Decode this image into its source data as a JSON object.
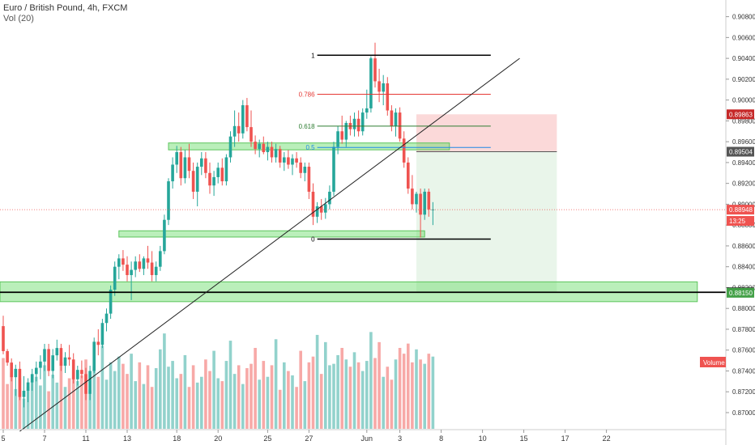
{
  "header": {
    "title": "Euro / British Pound, 4h, FXCM",
    "volume_label": "Vol (20)"
  },
  "chart_data": {
    "type": "candlestick",
    "price_axis": {
      "ylim": [
        0.8686,
        0.9096
      ],
      "ticks": [
        "0.90800",
        "0.90600",
        "0.90400",
        "0.90200",
        "0.90000",
        "0.89800",
        "0.89600",
        "0.89400",
        "0.89200",
        "0.89000",
        "0.88800",
        "0.88600",
        "0.88400",
        "0.88200",
        "0.88000",
        "0.87800",
        "0.87600",
        "0.87400",
        "0.87200",
        "0.87000"
      ],
      "tick_values": [
        0.908,
        0.906,
        0.904,
        0.902,
        0.9,
        0.898,
        0.896,
        0.894,
        0.892,
        0.89,
        0.888,
        0.886,
        0.884,
        0.882,
        0.88,
        0.878,
        0.876,
        0.874,
        0.872,
        0.87
      ]
    },
    "time_axis": {
      "labels": [
        "5",
        "7",
        "11",
        "13",
        "18",
        "20",
        "25",
        "27",
        "Jun",
        "3",
        "8",
        "10",
        "15",
        "17",
        "22"
      ],
      "bar_index": [
        0,
        10,
        20,
        30,
        42,
        52,
        64,
        74,
        88,
        96,
        106,
        116,
        126,
        136,
        146
      ]
    },
    "price_labels": [
      {
        "text": "0.89863",
        "value": 0.89863,
        "color": "#c62828"
      },
      {
        "text": "0.89504",
        "value": 0.89504,
        "color": "#555555"
      },
      {
        "text": "0.88948",
        "value": 0.88948,
        "color": "#ef5350"
      },
      {
        "text": "13:25",
        "value": 0.8884,
        "color": "#ef5350"
      },
      {
        "text": "0.88155",
        "value": 0.88155,
        "color": "#222222"
      },
      {
        "text": "0.88150",
        "value": 0.8815,
        "color": "#43a047"
      }
    ],
    "current_price": 0.88948,
    "fib_levels": [
      {
        "label": "1",
        "value": 0.9043,
        "color": "#000000"
      },
      {
        "label": "0.786",
        "value": 0.90055,
        "color": "#e53935"
      },
      {
        "label": "0.618",
        "value": 0.8975,
        "color": "#2e7d32"
      },
      {
        "label": "0.5",
        "value": 0.89545,
        "color": "#1e88e5"
      },
      {
        "label": "0",
        "value": 0.88665,
        "color": "#000000"
      }
    ],
    "fib_range": [
      76,
      118
    ],
    "support_zones": [
      {
        "from": 0.89522,
        "to": 0.89588,
        "start": 40,
        "end": 108
      },
      {
        "from": 0.88685,
        "to": 0.88745,
        "start": 28,
        "end": 102
      },
      {
        "from": 0.88065,
        "to": 0.88255,
        "start": -5,
        "end": 168
      }
    ],
    "horizontal_line": 0.88155,
    "trendline": [
      {
        "bar": 4,
        "price": 0.8682
      },
      {
        "bar": 125,
        "price": 0.904
      }
    ],
    "position": {
      "entry": 0.89504,
      "stop": 0.89863,
      "target": 0.8815,
      "start_bar": 100,
      "end_bar": 134
    },
    "candles": [
      [
        0.8783,
        0.8793,
        0.8756,
        0.8759
      ],
      [
        0.8759,
        0.8761,
        0.8745,
        0.8748
      ],
      [
        0.8748,
        0.8752,
        0.873,
        0.8734
      ],
      [
        0.8734,
        0.8746,
        0.8716,
        0.8742
      ],
      [
        0.8742,
        0.8749,
        0.8712,
        0.8715
      ],
      [
        0.8715,
        0.8735,
        0.8705,
        0.8721
      ],
      [
        0.8721,
        0.8733,
        0.871,
        0.8729
      ],
      [
        0.8729,
        0.8742,
        0.8721,
        0.8737
      ],
      [
        0.8737,
        0.8749,
        0.873,
        0.8743
      ],
      [
        0.8743,
        0.8755,
        0.8732,
        0.8749
      ],
      [
        0.8749,
        0.8766,
        0.874,
        0.8761
      ],
      [
        0.8761,
        0.8766,
        0.8735,
        0.874
      ],
      [
        0.874,
        0.8761,
        0.8733,
        0.8755
      ],
      [
        0.8755,
        0.877,
        0.875,
        0.8762
      ],
      [
        0.8762,
        0.8766,
        0.874,
        0.8745
      ],
      [
        0.8745,
        0.8758,
        0.8738,
        0.8753
      ],
      [
        0.8753,
        0.8765,
        0.8745,
        0.8751
      ],
      [
        0.8751,
        0.8757,
        0.8728,
        0.8732
      ],
      [
        0.8732,
        0.8745,
        0.8726,
        0.8741
      ],
      [
        0.8741,
        0.875,
        0.8733,
        0.8737
      ],
      [
        0.8737,
        0.8743,
        0.8712,
        0.8718
      ],
      [
        0.8718,
        0.8745,
        0.8712,
        0.874
      ],
      [
        0.874,
        0.8772,
        0.8738,
        0.8768
      ],
      [
        0.8768,
        0.878,
        0.8755,
        0.8765
      ],
      [
        0.8765,
        0.879,
        0.8762,
        0.8786
      ],
      [
        0.8786,
        0.88,
        0.8778,
        0.8795
      ],
      [
        0.8795,
        0.8822,
        0.879,
        0.8818
      ],
      [
        0.8818,
        0.8845,
        0.8812,
        0.884
      ],
      [
        0.884,
        0.8852,
        0.8828,
        0.8848
      ],
      [
        0.8848,
        0.8856,
        0.8836,
        0.8842
      ],
      [
        0.8842,
        0.885,
        0.8826,
        0.8832
      ],
      [
        0.8832,
        0.8845,
        0.8808,
        0.8837
      ],
      [
        0.8837,
        0.885,
        0.883,
        0.8845
      ],
      [
        0.8845,
        0.8852,
        0.8835,
        0.8838
      ],
      [
        0.8838,
        0.885,
        0.8832,
        0.8848
      ],
      [
        0.8848,
        0.886,
        0.8838,
        0.8844
      ],
      [
        0.8844,
        0.8855,
        0.8826,
        0.8832
      ],
      [
        0.8832,
        0.8845,
        0.8826,
        0.884
      ],
      [
        0.884,
        0.886,
        0.8836,
        0.8855
      ],
      [
        0.8855,
        0.889,
        0.8852,
        0.8885
      ],
      [
        0.8885,
        0.8925,
        0.888,
        0.8922
      ],
      [
        0.8922,
        0.8945,
        0.8915,
        0.8938
      ],
      [
        0.8938,
        0.8956,
        0.893,
        0.895
      ],
      [
        0.895,
        0.8955,
        0.8918,
        0.8925
      ],
      [
        0.8925,
        0.8952,
        0.892,
        0.8945
      ],
      [
        0.8945,
        0.8958,
        0.8925,
        0.8932
      ],
      [
        0.8932,
        0.894,
        0.8905,
        0.8912
      ],
      [
        0.8912,
        0.894,
        0.8898,
        0.8936
      ],
      [
        0.8936,
        0.895,
        0.8928,
        0.8944
      ],
      [
        0.8944,
        0.895,
        0.8925,
        0.893
      ],
      [
        0.893,
        0.894,
        0.891,
        0.8918
      ],
      [
        0.8918,
        0.8932,
        0.8908,
        0.8926
      ],
      [
        0.8926,
        0.894,
        0.892,
        0.8935
      ],
      [
        0.8935,
        0.8944,
        0.8918,
        0.8922
      ],
      [
        0.8922,
        0.8948,
        0.8918,
        0.8945
      ],
      [
        0.8945,
        0.897,
        0.894,
        0.8965
      ],
      [
        0.8965,
        0.899,
        0.8955,
        0.8975
      ],
      [
        0.8975,
        0.8988,
        0.896,
        0.8968
      ],
      [
        0.8968,
        0.9,
        0.8963,
        0.8995
      ],
      [
        0.8995,
        0.9002,
        0.897,
        0.8974
      ],
      [
        0.8974,
        0.899,
        0.8955,
        0.896
      ],
      [
        0.896,
        0.8966,
        0.8948,
        0.8953
      ],
      [
        0.8953,
        0.8962,
        0.8945,
        0.8958
      ],
      [
        0.8958,
        0.8965,
        0.8948,
        0.895
      ],
      [
        0.895,
        0.896,
        0.8942,
        0.8955
      ],
      [
        0.8955,
        0.896,
        0.894,
        0.8945
      ],
      [
        0.8945,
        0.8958,
        0.894,
        0.8953
      ],
      [
        0.8953,
        0.8956,
        0.8935,
        0.894
      ],
      [
        0.894,
        0.895,
        0.8932,
        0.8945
      ],
      [
        0.8945,
        0.8952,
        0.8934,
        0.8938
      ],
      [
        0.8938,
        0.8948,
        0.8928,
        0.8944
      ],
      [
        0.8944,
        0.895,
        0.8935,
        0.894
      ],
      [
        0.894,
        0.8945,
        0.8925,
        0.893
      ],
      [
        0.893,
        0.894,
        0.8922,
        0.8936
      ],
      [
        0.8936,
        0.894,
        0.8905,
        0.8912
      ],
      [
        0.8912,
        0.892,
        0.888,
        0.8888
      ],
      [
        0.8888,
        0.8902,
        0.8882,
        0.8898
      ],
      [
        0.8898,
        0.8905,
        0.8885,
        0.8892
      ],
      [
        0.8892,
        0.8906,
        0.8886,
        0.89
      ],
      [
        0.89,
        0.8918,
        0.8895,
        0.8912
      ],
      [
        0.8912,
        0.896,
        0.8908,
        0.8955
      ],
      [
        0.8955,
        0.8975,
        0.8948,
        0.897
      ],
      [
        0.897,
        0.8985,
        0.8958,
        0.8962
      ],
      [
        0.8962,
        0.898,
        0.8955,
        0.8978
      ],
      [
        0.8978,
        0.8985,
        0.8966,
        0.8972
      ],
      [
        0.8972,
        0.8988,
        0.8965,
        0.8982
      ],
      [
        0.8982,
        0.899,
        0.8965,
        0.897
      ],
      [
        0.897,
        0.8992,
        0.8966,
        0.8988
      ],
      [
        0.8988,
        0.901,
        0.8982,
        0.8992
      ],
      [
        0.8992,
        0.9042,
        0.8988,
        0.904
      ],
      [
        0.904,
        0.9055,
        0.9012,
        0.9018
      ],
      [
        0.9018,
        0.903,
        0.8998,
        0.9008
      ],
      [
        0.9008,
        0.9024,
        0.8995,
        0.9016
      ],
      [
        0.9016,
        0.9022,
        0.8985,
        0.899
      ],
      [
        0.899,
        0.8995,
        0.897,
        0.8975
      ],
      [
        0.8975,
        0.8992,
        0.8965,
        0.8988
      ],
      [
        0.8988,
        0.8993,
        0.896,
        0.8963
      ],
      [
        0.8963,
        0.897,
        0.8935,
        0.894
      ],
      [
        0.894,
        0.8945,
        0.891,
        0.8915
      ],
      [
        0.8915,
        0.8928,
        0.8895,
        0.89
      ],
      [
        0.89,
        0.8912,
        0.8892,
        0.891
      ],
      [
        0.891,
        0.8915,
        0.8868,
        0.889
      ],
      [
        0.889,
        0.8915,
        0.8885,
        0.8912
      ],
      [
        0.8912,
        0.8915,
        0.8888,
        0.8895
      ],
      [
        0.8895,
        0.8902,
        0.888,
        0.8895
      ]
    ],
    "volumes": [
      98,
      62,
      78,
      55,
      70,
      42,
      58,
      66,
      72,
      60,
      88,
      52,
      75,
      64,
      92,
      58,
      70,
      81,
      66,
      74,
      96,
      54,
      86,
      72,
      115,
      68,
      92,
      80,
      100,
      90,
      76,
      104,
      66,
      92,
      62,
      88,
      58,
      84,
      110,
      132,
      86,
      94,
      70,
      76,
      102,
      58,
      88,
      64,
      72,
      96,
      80,
      108,
      70,
      66,
      94,
      122,
      76,
      88,
      62,
      84,
      90,
      112,
      68,
      94,
      72,
      88,
      124,
      54,
      92,
      80,
      74,
      58,
      108,
      66,
      92,
      100,
      130,
      76,
      120,
      88,
      90,
      102,
      112,
      96,
      86,
      106,
      92,
      80,
      94,
      134,
      98,
      120,
      72,
      86,
      68,
      96,
      112,
      104,
      118,
      92,
      110,
      96,
      90,
      104,
      100
    ]
  }
}
